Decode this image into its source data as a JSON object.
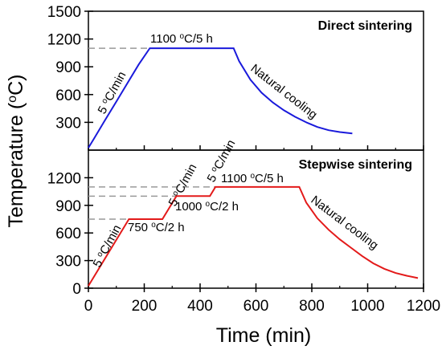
{
  "chart_data": [
    {
      "type": "line",
      "title": "Direct sintering",
      "xlabel": "Time (min)",
      "ylabel": "Temperature",
      "ylabel_unit": "o",
      "ylabel_unit_tail": "C",
      "xlim": [
        0,
        1200
      ],
      "ylim": [
        0,
        1500
      ],
      "grid": false,
      "color": "#1a1adb",
      "x": [
        0,
        20,
        60,
        100,
        140,
        180,
        220,
        520,
        540,
        580,
        620,
        660,
        700,
        740,
        780,
        820,
        860,
        900,
        945
      ],
      "y": [
        25,
        125,
        325,
        525,
        725,
        925,
        1100,
        1100,
        960,
        760,
        620,
        515,
        430,
        360,
        300,
        250,
        215,
        195,
        180
      ],
      "reference_lines": [
        1100
      ],
      "annotations": {
        "ramp_rate": {
          "pre": "5 ",
          "sup": "o",
          "post": "C/min"
        },
        "hold": {
          "pre": "1100 ",
          "sup": "o",
          "post": "C/5 h"
        },
        "cooling": "Natural cooling"
      },
      "y_ticks": [
        "300",
        "600",
        "900",
        "1200",
        "1500"
      ]
    },
    {
      "type": "line",
      "title": "Stepwise sintering",
      "xlim": [
        0,
        1200
      ],
      "ylim": [
        0,
        1500
      ],
      "grid": false,
      "color": "#e31a1a",
      "x": [
        0,
        145,
        265,
        315,
        435,
        455,
        755,
        780,
        820,
        860,
        900,
        940,
        980,
        1020,
        1060,
        1100,
        1140,
        1180
      ],
      "y": [
        25,
        750,
        750,
        1000,
        1000,
        1100,
        1100,
        930,
        760,
        635,
        530,
        440,
        350,
        270,
        210,
        165,
        135,
        110
      ],
      "reference_lines": [
        750,
        1000,
        1100
      ],
      "annotations": {
        "ramp_rate_1": {
          "pre": "5 ",
          "sup": "o",
          "post": "C/min"
        },
        "ramp_rate_2": {
          "pre": "5 ",
          "sup": "o",
          "post": "C/min"
        },
        "ramp_rate_3": {
          "pre": "5 ",
          "sup": "o",
          "post": "C/min"
        },
        "hold_1": {
          "pre": "750 ",
          "sup": "o",
          "post": "C/2 h"
        },
        "hold_2": {
          "pre": "1000 ",
          "sup": "o",
          "post": "C/2 h"
        },
        "hold_3": {
          "pre": "1100 ",
          "sup": "o",
          "post": "C/5 h"
        },
        "cooling": "Natural cooling"
      },
      "y_ticks": [
        "0",
        "300",
        "600",
        "900",
        "1200"
      ],
      "x_ticks": [
        "0",
        "200",
        "400",
        "600",
        "800",
        "1000",
        "1200"
      ]
    }
  ],
  "reference_line_color": "#999999"
}
